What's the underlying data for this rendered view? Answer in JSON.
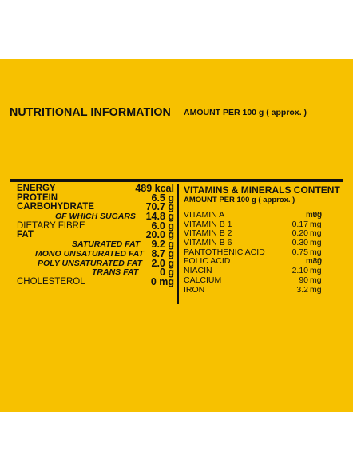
{
  "title": "NUTRITIONAL INFORMATION",
  "amount_note": "AMOUNT PER 100 g ( approx. )",
  "nutrients": [
    {
      "label": "ENERGY",
      "value": "489 kcal"
    },
    {
      "label": "PROTEIN",
      "value": "6.5 g"
    },
    {
      "label": "CARBOHYDRATE",
      "value": "70.7 g"
    },
    {
      "label": "OF WHICH SUGARS",
      "value": "14.8 g"
    },
    {
      "label": "DIETARY FIBRE",
      "value": "6.0 g"
    },
    {
      "label": "FAT",
      "value": "20.0 g"
    },
    {
      "label": "SATURATED FAT",
      "value": "9.2 g"
    },
    {
      "label": "MONO UNSATURATED FAT",
      "value": "8.7 g"
    },
    {
      "label": "POLY UNSATURATED FAT",
      "value": "2.0 g"
    },
    {
      "label": "TRANS FAT",
      "value": "0 g"
    },
    {
      "label": "CHOLESTEROL",
      "value": "0 mg"
    }
  ],
  "vitamins_heading": "VITAMINS & MINERALS CONTENT",
  "vitamins_subheading": "AMOUNT PER 100 g ( approx. )",
  "vitamins": [
    {
      "label": "VITAMIN A",
      "value": "90",
      "unit": "mcg"
    },
    {
      "label": "VITAMIN B 1",
      "value": "0.17",
      "unit": "mg"
    },
    {
      "label": "VITAMIN B 2",
      "value": "0.20",
      "unit": "mg"
    },
    {
      "label": "VITAMIN B 6",
      "value": "0.30",
      "unit": "mg"
    },
    {
      "label": "PANTOTHENIC ACID",
      "value": "0.75",
      "unit": "mg"
    },
    {
      "label": "FOLIC ACID",
      "value": "30",
      "unit": "mcg"
    },
    {
      "label": "NIACIN",
      "value": "2.10",
      "unit": "mg"
    },
    {
      "label": "CALCIUM",
      "value": "90",
      "unit": "mg"
    },
    {
      "label": "IRON",
      "value": "3.2",
      "unit": "mg"
    }
  ]
}
